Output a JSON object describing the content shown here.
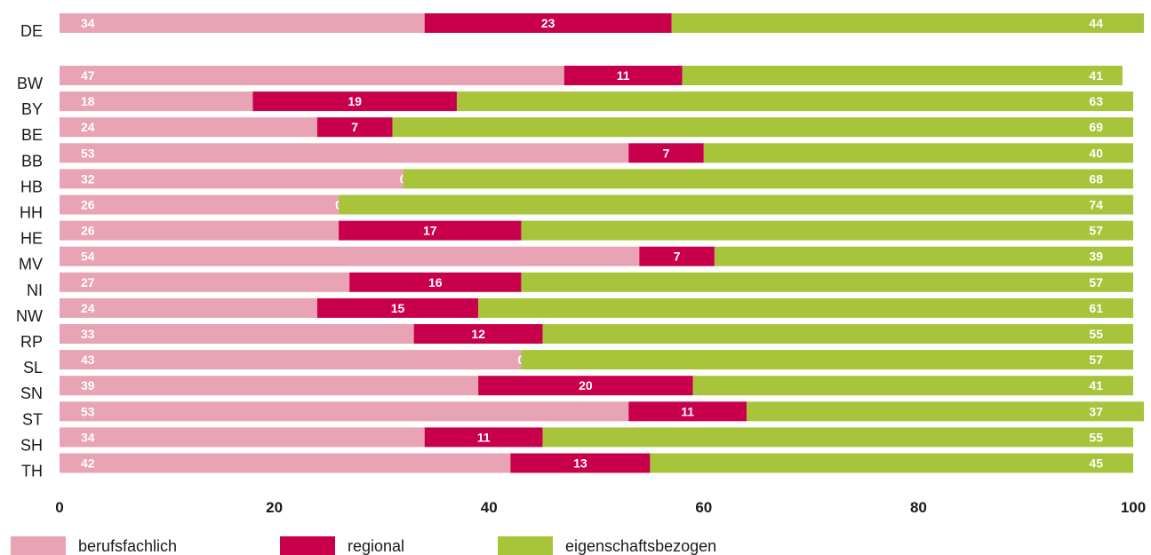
{
  "chart_data": {
    "type": "bar",
    "orientation": "horizontal",
    "stacked": true,
    "categories": [
      "DE",
      "BW",
      "BY",
      "BE",
      "BB",
      "HB",
      "HH",
      "HE",
      "MV",
      "NI",
      "NW",
      "RP",
      "SL",
      "SN",
      "ST",
      "SH",
      "TH"
    ],
    "series": [
      {
        "name": "berufsfachlich",
        "color": "#e8a3b4",
        "values": [
          34,
          47,
          18,
          24,
          53,
          32,
          26,
          26,
          54,
          27,
          24,
          33,
          43,
          39,
          53,
          34,
          42
        ]
      },
      {
        "name": "regional",
        "color": "#c8004b",
        "values": [
          23,
          11,
          19,
          7,
          7,
          0,
          0,
          17,
          7,
          16,
          15,
          12,
          0,
          20,
          11,
          11,
          13
        ]
      },
      {
        "name": "eigenschaftsbezogen",
        "color": "#a8c43a",
        "values": [
          44,
          41,
          63,
          69,
          40,
          68,
          74,
          57,
          39,
          57,
          61,
          55,
          57,
          41,
          37,
          55,
          45
        ]
      }
    ],
    "xlim": [
      0,
      100
    ],
    "xticks": [
      "0",
      "20",
      "40",
      "60",
      "80",
      "100"
    ],
    "title": "",
    "xlabel": "",
    "ylabel": "",
    "grid": false,
    "legend_position": "bottom"
  }
}
